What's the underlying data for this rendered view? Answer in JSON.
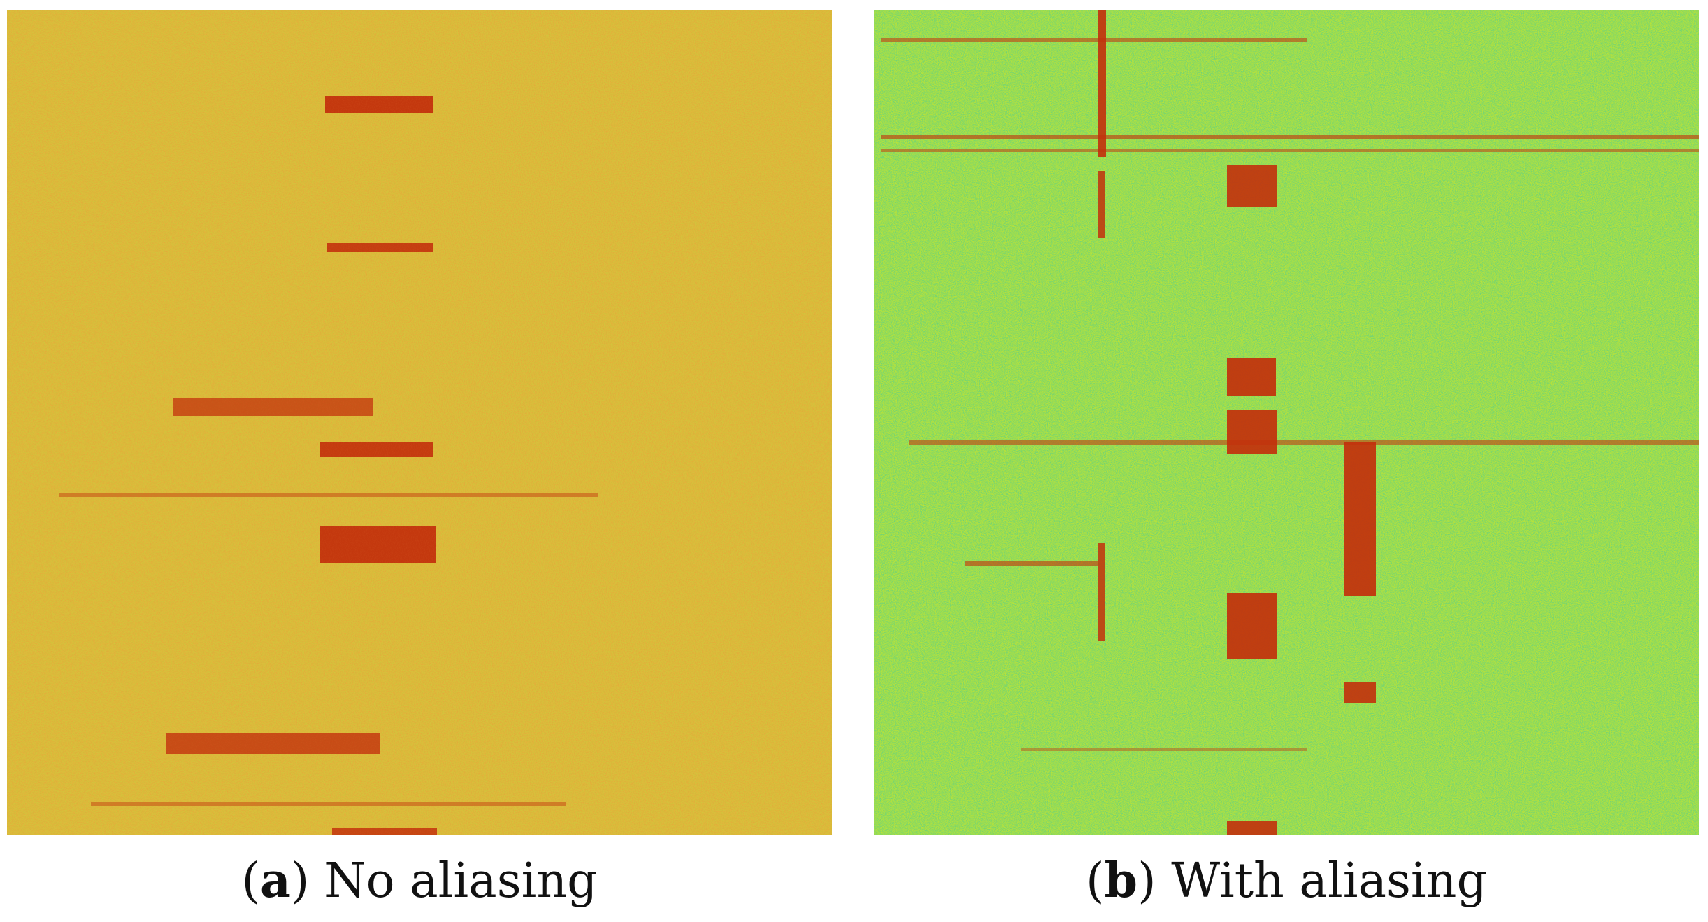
{
  "panels": [
    {
      "id": "a",
      "letter": "a",
      "text": "No aliasing",
      "background": "#c9d63a",
      "background_noise": "#e6b33d",
      "band_color": "#c4300c"
    },
    {
      "id": "b",
      "letter": "b",
      "text": "With aliasing",
      "background": "#b5e33a",
      "background_noise": "#3fc6a8",
      "band_color": "#c4300c"
    }
  ]
}
